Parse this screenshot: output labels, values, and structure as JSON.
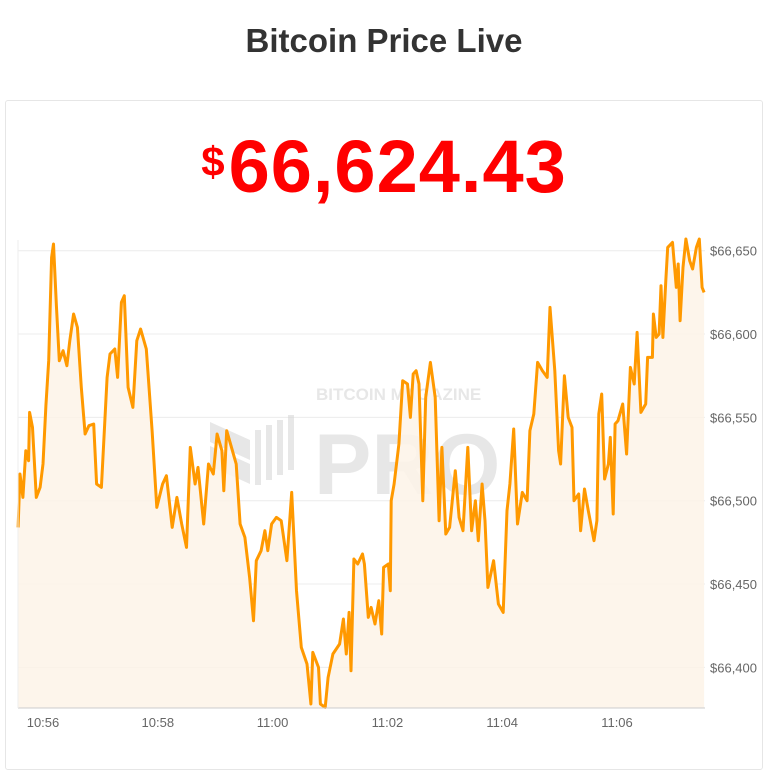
{
  "header": {
    "title": "Bitcoin Price Live"
  },
  "price": {
    "currency_symbol": "$",
    "value": "66,624.43",
    "color": "#ff0000"
  },
  "watermark": {
    "line1": "BITCOIN MAGAZINE",
    "line2": "PRO"
  },
  "chart_data": {
    "type": "area",
    "title": "",
    "xlabel": "",
    "ylabel": "",
    "x_ticks": [
      "10:56",
      "10:58",
      "11:00",
      "11:02",
      "11:04",
      "11:06"
    ],
    "y_ticks": [
      "$66,400",
      "$66,450",
      "$66,500",
      "$66,550",
      "$66,600",
      "$66,650"
    ],
    "y_tick_values": [
      66400,
      66450,
      66500,
      66550,
      66600,
      66650
    ],
    "xlim": [
      "10:55:34",
      "11:07:32"
    ],
    "ylim": [
      66376,
      66665
    ],
    "grid": true,
    "y_axis_side": "right",
    "line_color": "#ff9900",
    "fill_color": "#fdf3e7",
    "series": [
      {
        "points": [
          [
            "10:55:34",
            66484
          ],
          [
            "10:55:36",
            66516
          ],
          [
            "10:55:39",
            66502
          ],
          [
            "10:55:42",
            66530
          ],
          [
            "10:55:45",
            66524
          ],
          [
            "10:55:46",
            66553
          ],
          [
            "10:55:49",
            66544
          ],
          [
            "10:55:53",
            66502
          ],
          [
            "10:55:57",
            66508
          ],
          [
            "10:56:00",
            66522
          ],
          [
            "10:56:03",
            66557
          ],
          [
            "10:56:06",
            66584
          ],
          [
            "10:56:09",
            66646
          ],
          [
            "10:56:11",
            66654
          ],
          [
            "10:56:14",
            66617
          ],
          [
            "10:56:17",
            66584
          ],
          [
            "10:56:21",
            66590
          ],
          [
            "10:56:25",
            66581
          ],
          [
            "10:56:28",
            66596
          ],
          [
            "10:56:32",
            66612
          ],
          [
            "10:56:36",
            66604
          ],
          [
            "10:56:40",
            66568
          ],
          [
            "10:56:44",
            66540
          ],
          [
            "10:56:48",
            66545
          ],
          [
            "10:56:53",
            66546
          ],
          [
            "10:56:56",
            66510
          ],
          [
            "10:57:01",
            66508
          ],
          [
            "10:57:07",
            66574
          ],
          [
            "10:57:10",
            66588
          ],
          [
            "10:57:15",
            66591
          ],
          [
            "10:57:18",
            66574
          ],
          [
            "10:57:22",
            66619
          ],
          [
            "10:57:25",
            66623
          ],
          [
            "10:57:29",
            66568
          ],
          [
            "10:57:34",
            66556
          ],
          [
            "10:57:38",
            66596
          ],
          [
            "10:57:42",
            66603
          ],
          [
            "10:57:48",
            66591
          ],
          [
            "10:57:54",
            66542
          ],
          [
            "10:57:59",
            66496
          ],
          [
            "10:58:05",
            66510
          ],
          [
            "10:58:09",
            66515
          ],
          [
            "10:58:15",
            66484
          ],
          [
            "10:58:20",
            66502
          ],
          [
            "10:58:25",
            66486
          ],
          [
            "10:58:30",
            66472
          ],
          [
            "10:58:34",
            66532
          ],
          [
            "10:58:39",
            66510
          ],
          [
            "10:58:42",
            66520
          ],
          [
            "10:58:48",
            66486
          ],
          [
            "10:58:53",
            66522
          ],
          [
            "10:58:58",
            66516
          ],
          [
            "10:59:02",
            66540
          ],
          [
            "10:59:07",
            66530
          ],
          [
            "10:59:09",
            66506
          ],
          [
            "10:59:12",
            66542
          ],
          [
            "10:59:17",
            66532
          ],
          [
            "10:59:22",
            66522
          ],
          [
            "10:59:26",
            66486
          ],
          [
            "10:59:31",
            66478
          ],
          [
            "10:59:36",
            66454
          ],
          [
            "10:59:40",
            66428
          ],
          [
            "10:59:43",
            66464
          ],
          [
            "10:59:48",
            66470
          ],
          [
            "10:59:52",
            66482
          ],
          [
            "10:59:55",
            66470
          ],
          [
            "10:59:59",
            66486
          ],
          [
            "11:00:04",
            66490
          ],
          [
            "11:00:09",
            66488
          ],
          [
            "11:00:15",
            66464
          ],
          [
            "11:00:20",
            66505
          ],
          [
            "11:00:25",
            66446
          ],
          [
            "11:00:30",
            66412
          ],
          [
            "11:00:36",
            66402
          ],
          [
            "11:00:40",
            66378
          ],
          [
            "11:00:42",
            66409
          ],
          [
            "11:00:48",
            66400
          ],
          [
            "11:00:50",
            66378
          ],
          [
            "11:00:55",
            66376
          ],
          [
            "11:00:58",
            66394
          ],
          [
            "11:01:03",
            66408
          ],
          [
            "11:01:10",
            66414
          ],
          [
            "11:01:14",
            66429
          ],
          [
            "11:01:17",
            66408
          ],
          [
            "11:01:20",
            66433
          ],
          [
            "11:01:22",
            66398
          ],
          [
            "11:01:25",
            66465
          ],
          [
            "11:01:29",
            66462
          ],
          [
            "11:01:34",
            66468
          ],
          [
            "11:01:36",
            66462
          ],
          [
            "11:01:40",
            66430
          ],
          [
            "11:01:43",
            66436
          ],
          [
            "11:01:47",
            66426
          ],
          [
            "11:01:51",
            66440
          ],
          [
            "11:01:54",
            66420
          ],
          [
            "11:01:56",
            66460
          ],
          [
            "11:02:01",
            66462
          ],
          [
            "11:02:03",
            66446
          ],
          [
            "11:02:04",
            66500
          ],
          [
            "11:02:07",
            66510
          ],
          [
            "11:02:12",
            66534
          ],
          [
            "11:02:16",
            66572
          ],
          [
            "11:02:21",
            66570
          ],
          [
            "11:02:24",
            66550
          ],
          [
            "11:02:27",
            66576
          ],
          [
            "11:02:30",
            66578
          ],
          [
            "11:02:33",
            66570
          ],
          [
            "11:02:37",
            66500
          ],
          [
            "11:02:40",
            66562
          ],
          [
            "11:02:45",
            66583
          ],
          [
            "11:02:50",
            66562
          ],
          [
            "11:02:54",
            66488
          ],
          [
            "11:02:57",
            66532
          ],
          [
            "11:03:01",
            66480
          ],
          [
            "11:03:05",
            66484
          ],
          [
            "11:03:11",
            66518
          ],
          [
            "11:03:15",
            66490
          ],
          [
            "11:03:19",
            66482
          ],
          [
            "11:03:24",
            66532
          ],
          [
            "11:03:28",
            66482
          ],
          [
            "11:03:32",
            66500
          ],
          [
            "11:03:35",
            66476
          ],
          [
            "11:03:39",
            66510
          ],
          [
            "11:03:42",
            66488
          ],
          [
            "11:03:45",
            66448
          ],
          [
            "11:03:51",
            66464
          ],
          [
            "11:03:56",
            66438
          ],
          [
            "11:04:01",
            66433
          ],
          [
            "11:04:05",
            66494
          ],
          [
            "11:04:08",
            66510
          ],
          [
            "11:04:12",
            66543
          ],
          [
            "11:04:16",
            66486
          ],
          [
            "11:04:21",
            66505
          ],
          [
            "11:04:26",
            66500
          ],
          [
            "11:04:29",
            66542
          ],
          [
            "11:04:33",
            66552
          ],
          [
            "11:04:37",
            66583
          ],
          [
            "11:04:42",
            66578
          ],
          [
            "11:04:47",
            66574
          ],
          [
            "11:04:50",
            66616
          ],
          [
            "11:04:55",
            66578
          ],
          [
            "11:04:59",
            66530
          ],
          [
            "11:05:01",
            66522
          ],
          [
            "11:05:05",
            66575
          ],
          [
            "11:05:09",
            66550
          ],
          [
            "11:05:13",
            66544
          ],
          [
            "11:05:15",
            66500
          ],
          [
            "11:05:20",
            66504
          ],
          [
            "11:05:22",
            66482
          ],
          [
            "11:05:26",
            66507
          ],
          [
            "11:05:30",
            66494
          ],
          [
            "11:05:36",
            66476
          ],
          [
            "11:05:39",
            66488
          ],
          [
            "11:05:41",
            66552
          ],
          [
            "11:05:44",
            66564
          ],
          [
            "11:05:47",
            66513
          ],
          [
            "11:05:51",
            66522
          ],
          [
            "11:05:53",
            66538
          ],
          [
            "11:05:56",
            66492
          ],
          [
            "11:05:58",
            66546
          ],
          [
            "11:06:01",
            66548
          ],
          [
            "11:06:06",
            66558
          ],
          [
            "11:06:10",
            66528
          ],
          [
            "11:06:14",
            66580
          ],
          [
            "11:06:18",
            66570
          ],
          [
            "11:06:21",
            66601
          ],
          [
            "11:06:25",
            66553
          ],
          [
            "11:06:30",
            66558
          ],
          [
            "11:06:32",
            66586
          ],
          [
            "11:06:37",
            66586
          ],
          [
            "11:06:38",
            66612
          ],
          [
            "11:06:41",
            66598
          ],
          [
            "11:06:44",
            66600
          ],
          [
            "11:06:46",
            66629
          ],
          [
            "11:06:48",
            66598
          ],
          [
            "11:06:51",
            66632
          ],
          [
            "11:06:53",
            66652
          ],
          [
            "11:06:58",
            66655
          ],
          [
            "11:07:02",
            66628
          ],
          [
            "11:07:04",
            66642
          ],
          [
            "11:07:06",
            66608
          ],
          [
            "11:07:09",
            66640
          ],
          [
            "11:07:12",
            66657
          ],
          [
            "11:07:16",
            66644
          ],
          [
            "11:07:19",
            66639
          ],
          [
            "11:07:23",
            66652
          ],
          [
            "11:07:26",
            66657
          ],
          [
            "11:07:29",
            66628
          ],
          [
            "11:07:31",
            66625
          ]
        ]
      }
    ]
  }
}
